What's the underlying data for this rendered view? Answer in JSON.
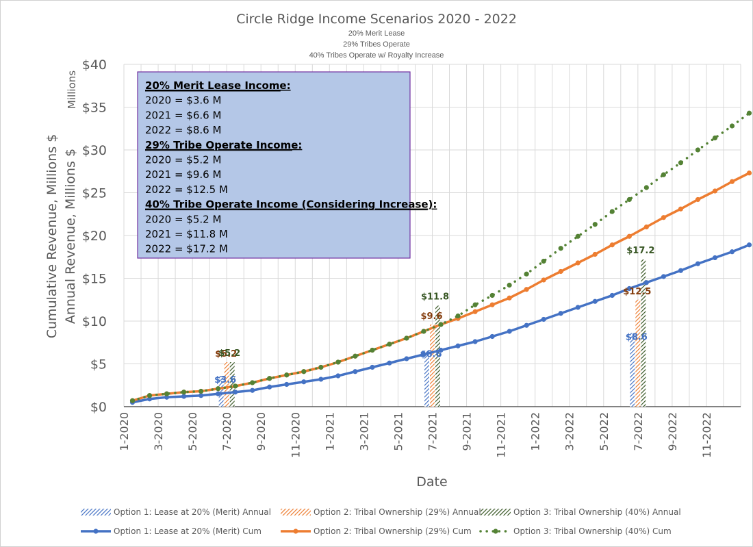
{
  "chart_data": {
    "type": "bar+line",
    "title": "Circle Ridge Income Scenarios 2020 - 2022",
    "subtitles": [
      "20% Merit Lease",
      "29% Tribes Operate",
      "40% Tribes Operate w/ Royalty Increase"
    ],
    "xlabel": "Date",
    "ylabel_lines": [
      "Cumulative Revenue, Millions $",
      "Annual Revenue, Millions $"
    ],
    "y_units": "Millions",
    "ylim": [
      0,
      40
    ],
    "y_ticks": [
      {
        "value": 0,
        "label": "$0"
      },
      {
        "value": 5,
        "label": "$5"
      },
      {
        "value": 10,
        "label": "$10"
      },
      {
        "value": 15,
        "label": "$15"
      },
      {
        "value": 20,
        "label": "$20"
      },
      {
        "value": 25,
        "label": "$25"
      },
      {
        "value": 30,
        "label": "$30"
      },
      {
        "value": 35,
        "label": "$35"
      },
      {
        "value": 40,
        "label": "$40"
      }
    ],
    "x_tick_labels": [
      {
        "index": 0,
        "label": "1-2020"
      },
      {
        "index": 2,
        "label": "3-2020"
      },
      {
        "index": 4,
        "label": "5-2020"
      },
      {
        "index": 6,
        "label": "7-2020"
      },
      {
        "index": 8,
        "label": "9-2020"
      },
      {
        "index": 10,
        "label": "11-2020"
      },
      {
        "index": 12,
        "label": "1-2021"
      },
      {
        "index": 14,
        "label": "3-2021"
      },
      {
        "index": 16,
        "label": "5-2021"
      },
      {
        "index": 18,
        "label": "7-2021"
      },
      {
        "index": 20,
        "label": "9-2021"
      },
      {
        "index": 22,
        "label": "11-2021"
      },
      {
        "index": 24,
        "label": "1-2022"
      },
      {
        "index": 26,
        "label": "3-2022"
      },
      {
        "index": 28,
        "label": "5-2022"
      },
      {
        "index": 30,
        "label": "7-2022"
      },
      {
        "index": 32,
        "label": "9-2022"
      },
      {
        "index": 34,
        "label": "11-2022"
      }
    ],
    "months": 36,
    "annual_bars": {
      "positions": [
        5,
        17,
        29
      ],
      "series": [
        {
          "name": "Option 1: Lease at 20% (Merit) Annual",
          "color": "#4472c4",
          "values": [
            3.6,
            6.6,
            8.6
          ],
          "labels": [
            "$3.6",
            "$6.6",
            "$8.6"
          ]
        },
        {
          "name": "Option 2: Tribal Ownership (29%) Annual",
          "color": "#ed7d31",
          "values": [
            5.2,
            9.6,
            12.5
          ],
          "labels": [
            "$5.2",
            "$9.6",
            "$12.5"
          ]
        },
        {
          "name": "Option 3: Tribal Ownership (40%) Annual",
          "color": "#375623",
          "values": [
            5.2,
            11.8,
            17.2
          ],
          "labels": [
            "$5.2",
            "$11.8",
            "$17.2"
          ]
        }
      ]
    },
    "cumulative_series": [
      {
        "name": "Option 1: Lease at 20% (Merit) Cum",
        "color": "#4472c4",
        "style": "solid",
        "values": [
          0.5,
          0.9,
          1.1,
          1.2,
          1.3,
          1.5,
          1.7,
          1.9,
          2.3,
          2.6,
          2.9,
          3.2,
          3.6,
          4.1,
          4.6,
          5.1,
          5.6,
          6.1,
          6.6,
          7.1,
          7.6,
          8.2,
          8.8,
          9.5,
          10.2,
          10.9,
          11.6,
          12.3,
          13.0,
          13.8,
          14.5,
          15.2,
          15.9,
          16.7,
          17.4,
          18.1,
          18.9
        ]
      },
      {
        "name": "Option 2: Tribal Ownership (29%) Cum",
        "color": "#ed7d31",
        "style": "solid",
        "values": [
          0.7,
          1.3,
          1.5,
          1.7,
          1.8,
          2.1,
          2.4,
          2.8,
          3.3,
          3.7,
          4.1,
          4.6,
          5.2,
          5.9,
          6.6,
          7.3,
          8.0,
          8.8,
          9.6,
          10.3,
          11.1,
          11.9,
          12.7,
          13.7,
          14.8,
          15.8,
          16.8,
          17.8,
          18.9,
          19.9,
          21.0,
          22.1,
          23.1,
          24.2,
          25.2,
          26.3,
          27.3
        ]
      },
      {
        "name": "Option 3: Tribal Ownership (40%) Cum",
        "color": "#548235",
        "style": "dotted",
        "values": [
          0.7,
          1.3,
          1.5,
          1.7,
          1.8,
          2.1,
          2.4,
          2.8,
          3.3,
          3.7,
          4.1,
          4.6,
          5.2,
          5.9,
          6.6,
          7.3,
          8.0,
          8.8,
          9.6,
          10.6,
          11.9,
          13.0,
          14.2,
          15.5,
          17.0,
          18.5,
          19.9,
          21.3,
          22.8,
          24.2,
          25.6,
          27.1,
          28.5,
          30.0,
          31.4,
          32.8,
          34.3
        ]
      }
    ],
    "legend_position": "bottom",
    "grid": true
  },
  "info_box": {
    "lines": [
      {
        "text": "20% Merit Lease Income:",
        "bold": true
      },
      {
        "text": "2020 = $3.6 M",
        "bold": false
      },
      {
        "text": "2021 = $6.6 M",
        "bold": false
      },
      {
        "text": "2022 = $8.6 M",
        "bold": false
      },
      {
        "text": "29% Tribe Operate Income:",
        "bold": true
      },
      {
        "text": "2020 = $5.2 M",
        "bold": false
      },
      {
        "text": "2021 = $9.6 M",
        "bold": false
      },
      {
        "text": "2022 = $12.5 M",
        "bold": false
      },
      {
        "text": "40% Tribe Operate Income (Considering Increase):",
        "bold": true
      },
      {
        "text": "2020 = $5.2 M",
        "bold": false
      },
      {
        "text": "2021 = $11.8 M",
        "bold": false
      },
      {
        "text": "2022 = $17.2 M",
        "bold": false
      }
    ]
  },
  "colors": {
    "blue": "#4472c4",
    "orange": "#ed7d31",
    "green_bar": "#375623",
    "green_line": "#548235",
    "orange_label": "#843c0c",
    "green_label": "#375623",
    "blue_label": "#4472c4",
    "info_box_fill": "#b4c7e7",
    "info_box_border": "#7030a0"
  }
}
